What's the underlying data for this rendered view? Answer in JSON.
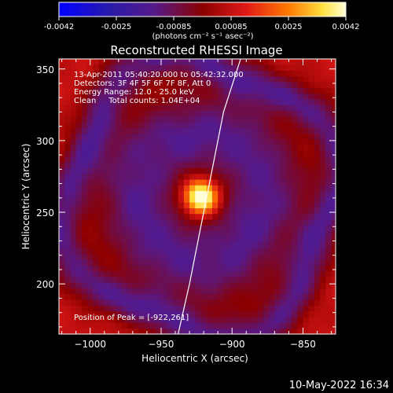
{
  "colorbar": {
    "ticks": [
      "-0.0042",
      "-0.0025",
      "-0.00085",
      "0.00085",
      "0.0025",
      "0.0042"
    ],
    "unit_label": "(photons cm⁻² s⁻¹ asec⁻²)"
  },
  "chart_data": {
    "type": "heatmap",
    "title": "Reconstructed RHESSI Image",
    "xlabel": "Heliocentric X (arcsec)",
    "ylabel": "Heliocentric Y (arcsec)",
    "xlim": [
      -1022,
      -827
    ],
    "ylim": [
      165,
      357
    ],
    "x_ticks": [
      -1000,
      -950,
      -900,
      -850
    ],
    "x_tick_labels": [
      "−1000",
      "−950",
      "−900",
      "−850"
    ],
    "y_ticks": [
      200,
      250,
      300,
      350
    ],
    "y_tick_labels": [
      "200",
      "250",
      "300",
      "350"
    ],
    "value_range": [
      -0.0042,
      0.0042
    ],
    "peak": [
      -922,
      261
    ],
    "limb_curve": [
      [
        -938,
        165
      ],
      [
        -930,
        200
      ],
      [
        -922,
        240
      ],
      [
        -914,
        280
      ],
      [
        -906,
        320
      ],
      [
        -894,
        357
      ]
    ],
    "annotations": [
      "13-Apr-2011 05:40:20.000 to 05:42:32.000",
      "Detectors: 3F 4F 5F 6F 7F 8F, Att 0",
      "Energy Range: 12.0 - 25.0 keV",
      "Clean     Total counts: 1.04E+04"
    ],
    "peak_label": "Position of Peak = [-922,261]"
  },
  "footer_timestamp": "10-May-2022 16:34"
}
